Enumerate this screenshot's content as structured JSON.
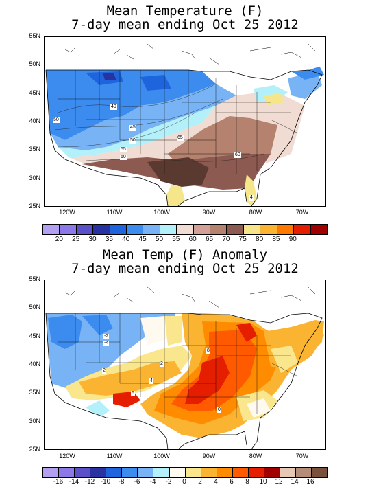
{
  "panels": [
    {
      "title_line1": "Mean Temperature (F)",
      "title_line2": "7-day mean ending Oct 25 2012",
      "lat_labels": [
        "55N",
        "50N",
        "45N",
        "40N",
        "35N",
        "30N",
        "25N"
      ],
      "lon_labels": [
        "120W",
        "110W",
        "100W",
        "90W",
        "80W",
        "70W"
      ],
      "legend_colors": [
        "#b4a0f0",
        "#8c78e6",
        "#5a50c8",
        "#2832a0",
        "#1e64dc",
        "#3c8cf0",
        "#78b4f5",
        "#b4f0fa",
        "#f0dcd2",
        "#d2a096",
        "#b4826e",
        "#8c5a50",
        "#f5e68c",
        "#fab432",
        "#ff7800",
        "#e61e00",
        "#a00000"
      ],
      "legend_labels": [
        "20",
        "25",
        "30",
        "35",
        "40",
        "45",
        "50",
        "55",
        "60",
        "65",
        "70",
        "75",
        "80",
        "85",
        "90"
      ],
      "contour_labels": [
        "40",
        "45",
        "50",
        "55",
        "60",
        "65",
        "50",
        "60",
        "4"
      ]
    },
    {
      "title_line1": "Mean Temp (F) Anomaly",
      "title_line2": "7-day mean ending Oct 25 2012",
      "lat_labels": [
        "55N",
        "50N",
        "45N",
        "40N",
        "35N",
        "30N",
        "25N"
      ],
      "lon_labels": [
        "120W",
        "110W",
        "100W",
        "90W",
        "80W",
        "70W"
      ],
      "legend_colors": [
        "#b4a0f0",
        "#8c78e6",
        "#5a50c8",
        "#2832a0",
        "#1e64dc",
        "#3c8cf0",
        "#78b4f5",
        "#b4f0fa",
        "#fffaf0",
        "#fae68c",
        "#fab432",
        "#ff8c00",
        "#ff5a00",
        "#e61e00",
        "#a00000",
        "#e6c8b4",
        "#b48c78",
        "#78503c"
      ],
      "legend_labels": [
        "-16",
        "-14",
        "-12",
        "-10",
        "-8",
        "-6",
        "-4",
        "-2",
        "0",
        "2",
        "4",
        "6",
        "8",
        "10",
        "12",
        "14",
        "16"
      ],
      "contour_labels": [
        "-2",
        "2",
        "2",
        "4",
        "6",
        "8",
        "0",
        "-4"
      ]
    }
  ]
}
